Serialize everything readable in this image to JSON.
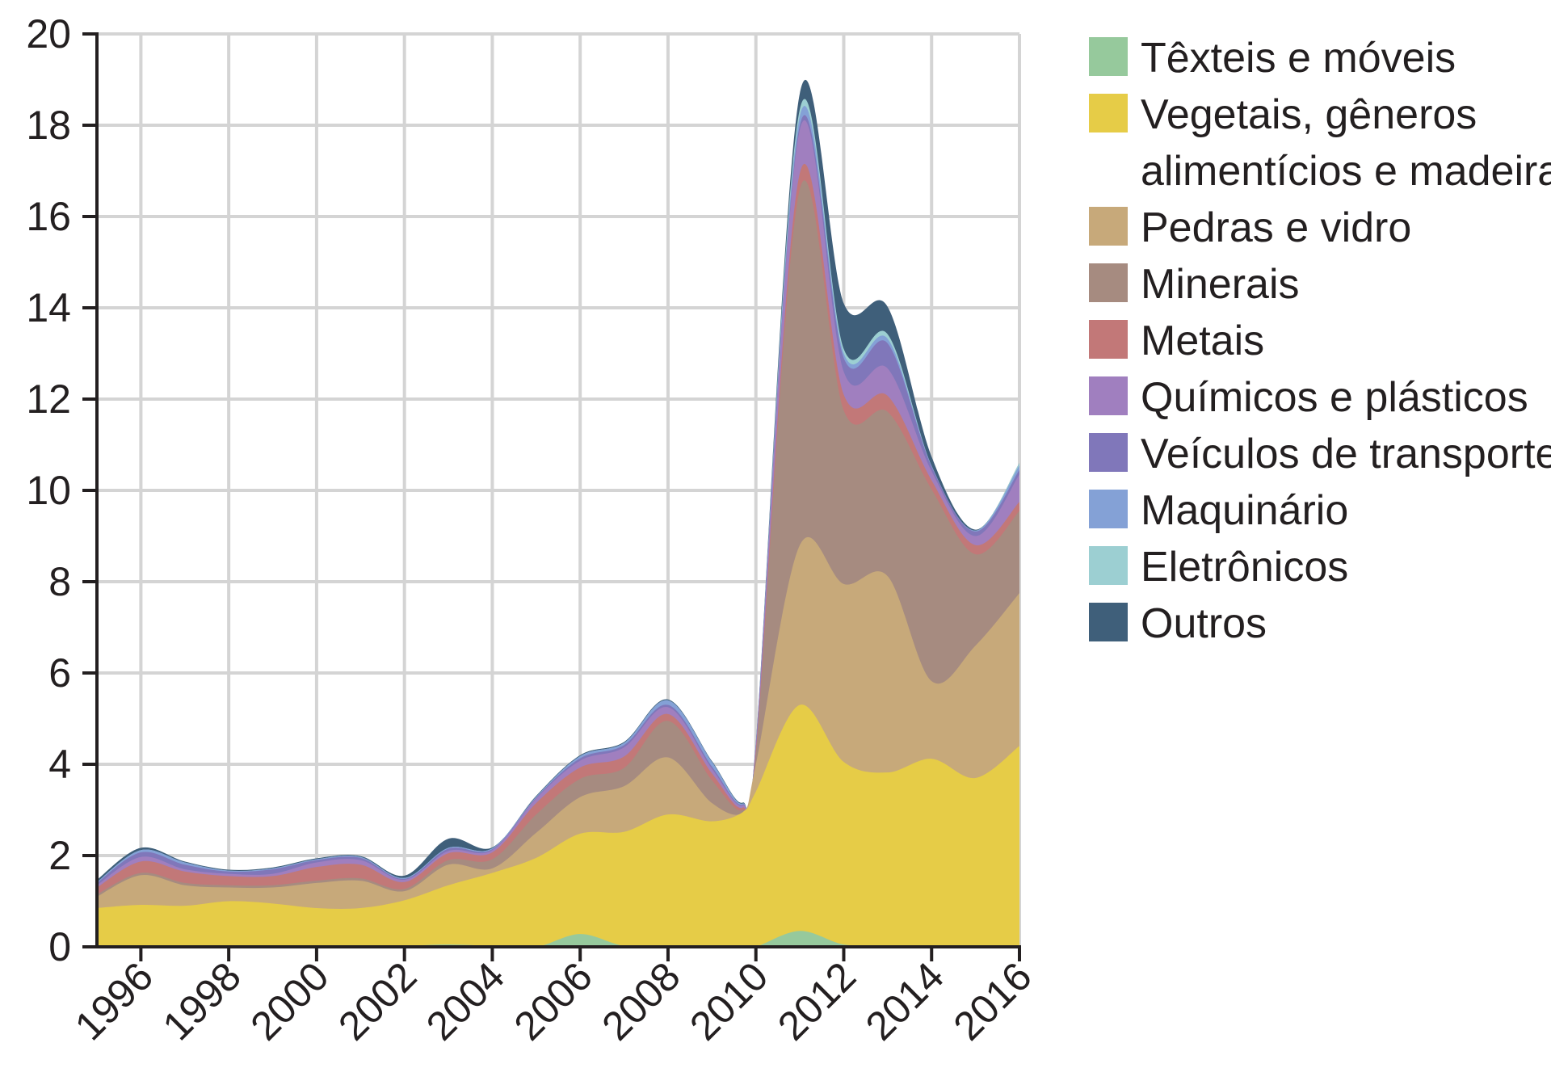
{
  "chart_data": {
    "type": "area",
    "stacked": true,
    "title": "",
    "xlabel": "",
    "ylabel": "",
    "xlim": [
      1995,
      2016
    ],
    "ylim": [
      0,
      20
    ],
    "y_ticks": [
      0,
      2,
      4,
      6,
      8,
      10,
      12,
      14,
      16,
      18,
      20
    ],
    "x_ticks": [
      1996,
      1998,
      2000,
      2002,
      2004,
      2006,
      2008,
      2010,
      2012,
      2014,
      2016
    ],
    "x_tick_labels": [
      "1996",
      "1998",
      "2000",
      "2002",
      "2004",
      "2006",
      "2008",
      "2010",
      "2012",
      "2014",
      "2016"
    ],
    "y_tick_labels": [
      "0",
      "2",
      "4",
      "6",
      "8",
      "10",
      "12",
      "14",
      "16",
      "18",
      "20"
    ],
    "grid": true,
    "legend_position": "right",
    "x": [
      1995,
      1996,
      1997,
      1998,
      1999,
      2000,
      2001,
      2002,
      2003,
      2004,
      2005,
      2006,
      2007,
      2008,
      2009,
      2009.7,
      2010,
      2011,
      2012,
      2013,
      2014,
      2015,
      2016
    ],
    "series": [
      {
        "name": "Têxteis e móveis",
        "color": "#96c99c",
        "values": [
          0,
          0,
          0,
          0,
          0,
          0,
          0,
          0.02,
          0.05,
          0.02,
          0,
          0.28,
          0.02,
          0,
          0,
          0,
          0,
          0.35,
          0.05,
          0.02,
          0.02,
          0,
          0
        ]
      },
      {
        "name": "Vegetais, gêneros\nalimentícios e madeira",
        "color": "#e6cc47",
        "values": [
          0.85,
          0.92,
          0.9,
          1.0,
          0.95,
          0.85,
          0.85,
          1.0,
          1.3,
          1.6,
          1.95,
          2.2,
          2.5,
          2.9,
          2.75,
          2.95,
          3.4,
          4.95,
          4.0,
          3.8,
          4.1,
          3.7,
          4.4
        ]
      },
      {
        "name": "Pedras e vidro",
        "color": "#c7a97a",
        "values": [
          0.25,
          0.65,
          0.45,
          0.3,
          0.35,
          0.55,
          0.6,
          0.2,
          0.45,
          0.1,
          0.55,
          0.8,
          1.0,
          1.25,
          0.4,
          0,
          0.6,
          3.5,
          3.9,
          4.3,
          1.7,
          2.9,
          3.35
        ]
      },
      {
        "name": "Minerais",
        "color": "#a68b80",
        "values": [
          0.05,
          0.05,
          0.05,
          0.05,
          0.05,
          0.05,
          0.05,
          0.05,
          0.1,
          0.2,
          0.4,
          0.4,
          0.4,
          0.8,
          0.5,
          0.05,
          0.2,
          7.8,
          3.8,
          3.6,
          4.2,
          2.0,
          1.8
        ]
      },
      {
        "name": "Metais",
        "color": "#c27878",
        "values": [
          0.15,
          0.25,
          0.25,
          0.2,
          0.2,
          0.3,
          0.3,
          0.15,
          0.15,
          0.15,
          0.25,
          0.25,
          0.25,
          0.15,
          0.15,
          0.05,
          0.1,
          0.35,
          0.35,
          0.35,
          0.2,
          0.2,
          0.2
        ]
      },
      {
        "name": "Químicos e plásticos",
        "color": "#a07fbf",
        "values": [
          0.05,
          0.1,
          0.05,
          0.05,
          0.05,
          0.1,
          0.1,
          0.05,
          0.05,
          0.05,
          0.1,
          0.15,
          0.2,
          0.15,
          0.1,
          0.05,
          0.1,
          0.95,
          0.5,
          0.6,
          0.2,
          0.2,
          0.6
        ]
      },
      {
        "name": "Veículos de transporte",
        "color": "#8077ba",
        "values": [
          0.05,
          0.1,
          0.1,
          0.05,
          0.1,
          0.05,
          0.05,
          0.02,
          0.05,
          0.02,
          0.02,
          0.05,
          0.05,
          0.05,
          0.05,
          0.02,
          0.05,
          0.1,
          0.3,
          0.55,
          0.1,
          0.1,
          0.1
        ]
      },
      {
        "name": "Maquinário",
        "color": "#84a1d6",
        "values": [
          0.02,
          0.05,
          0.05,
          0.02,
          0.02,
          0.02,
          0.02,
          0.02,
          0.02,
          0.02,
          0.02,
          0.05,
          0.05,
          0.1,
          0.1,
          0.02,
          0.02,
          0.2,
          0.1,
          0.1,
          0.02,
          0.02,
          0.1
        ]
      },
      {
        "name": "Eletrônicos",
        "color": "#9ccfd2",
        "values": [
          0,
          0,
          0,
          0,
          0,
          0,
          0,
          0,
          0,
          0,
          0,
          0,
          0,
          0,
          0,
          0,
          0,
          0.15,
          0.1,
          0.1,
          0,
          0,
          0.05
        ]
      },
      {
        "name": "Outros",
        "color": "#3f5f7a",
        "values": [
          0.05,
          0.05,
          0.02,
          0.02,
          0.02,
          0.02,
          0.02,
          0.05,
          0.2,
          0.02,
          0.02,
          0.02,
          0.02,
          0.02,
          0.02,
          0.02,
          0.02,
          0.35,
          1.0,
          0.6,
          0.2,
          0.02,
          0
        ]
      }
    ]
  }
}
